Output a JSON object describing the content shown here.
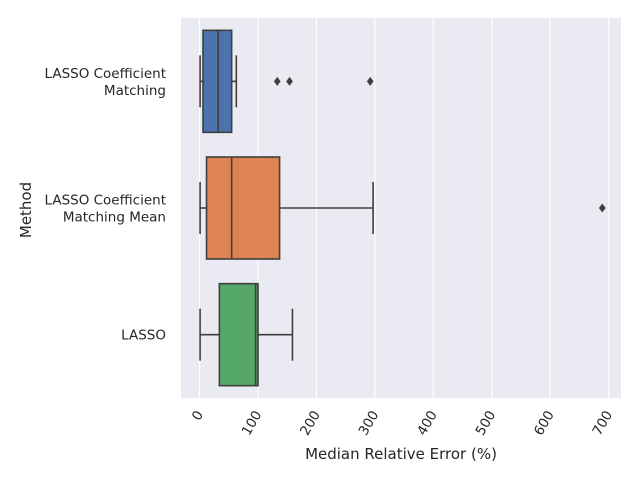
{
  "chart_data": {
    "type": "boxplot",
    "orientation": "horizontal",
    "xlabel": "Median Relative Error (%)",
    "ylabel": "Method",
    "xlim": [
      -30,
      725
    ],
    "xticks": [
      0,
      100,
      200,
      300,
      400,
      500,
      600,
      700
    ],
    "tick_rotation": 60,
    "grid": true,
    "background": "#eaeaf2",
    "categories": [
      {
        "label": [
          "LASSO Coefficient",
          "Matching"
        ],
        "color": "#4c72b0",
        "whisker_low": 1,
        "q1": 6,
        "median": 32,
        "q3": 55,
        "whisker_high": 63,
        "outliers": [
          133,
          154,
          292
        ]
      },
      {
        "label": [
          "LASSO Coefficient",
          "Matching Mean"
        ],
        "color": "#dd8452",
        "whisker_low": 1,
        "q1": 12,
        "median": 55,
        "q3": 137,
        "whisker_high": 297,
        "outliers": [
          689
        ]
      },
      {
        "label": [
          "LASSO"
        ],
        "color": "#55a868",
        "whisker_low": 1,
        "q1": 34,
        "median": 96,
        "q3": 100,
        "whisker_high": 159,
        "outliers": []
      }
    ]
  }
}
